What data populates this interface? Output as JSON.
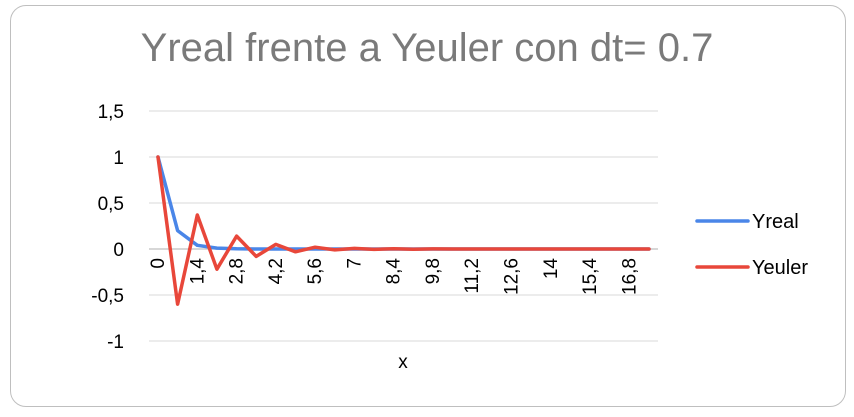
{
  "chart_data": {
    "type": "line",
    "title": "Yreal frente a Yeuler con dt= 0.7",
    "xlabel": "x",
    "ylabel": "",
    "ylim": [
      -1,
      1.5
    ],
    "ytick_labels": [
      "1,5",
      "1",
      "0,5",
      "0",
      "-0,5",
      "-1"
    ],
    "ytick_values": [
      1.5,
      1,
      0.5,
      0,
      -0.5,
      -1
    ],
    "x": [
      0,
      0.7,
      1.4,
      2.1,
      2.8,
      3.5,
      4.2,
      4.9,
      5.6,
      6.3,
      7,
      7.7,
      8.4,
      9.1,
      9.8,
      10.5,
      11.2,
      11.9,
      12.6,
      13.3,
      14,
      14.7,
      15.4,
      16.1,
      16.8,
      17.5
    ],
    "xtick_labels": [
      "0",
      "1,4",
      "2,8",
      "4,2",
      "5,6",
      "7",
      "8,4",
      "9,8",
      "11,2",
      "12,6",
      "14",
      "15,4",
      "16,8"
    ],
    "xtick_values": [
      0,
      1.4,
      2.8,
      4.2,
      5.6,
      7,
      8.4,
      9.8,
      11.2,
      12.6,
      14,
      15.4,
      16.8
    ],
    "grid": true,
    "legend_position": "right",
    "series": [
      {
        "name": "Yreal",
        "color": "#4a86e8",
        "values": [
          1,
          0.2,
          0.04,
          0.01,
          0.002,
          0,
          0,
          0,
          0,
          0,
          0,
          0,
          0,
          0,
          0,
          0,
          0,
          0,
          0,
          0,
          0,
          0,
          0,
          0,
          0,
          0
        ]
      },
      {
        "name": "Yeuler",
        "color": "#e8473a",
        "values": [
          1,
          -0.6,
          0.37,
          -0.22,
          0.14,
          -0.08,
          0.05,
          -0.03,
          0.02,
          -0.01,
          0.007,
          -0.004,
          0.003,
          -0.002,
          0.001,
          0,
          0,
          0,
          0,
          0,
          0,
          0,
          0,
          0,
          0,
          0
        ]
      }
    ]
  }
}
